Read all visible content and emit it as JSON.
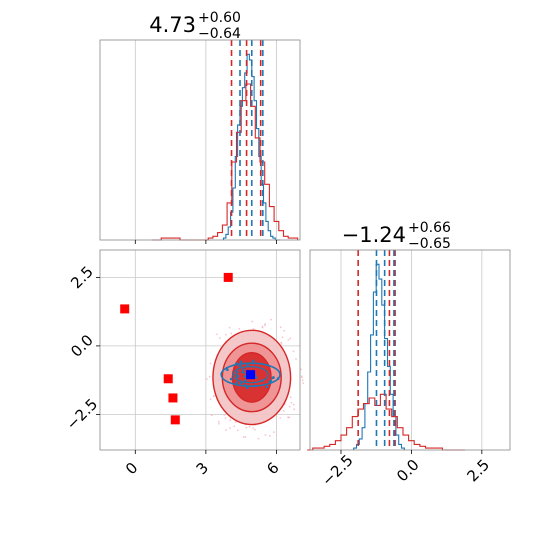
{
  "chart_data": [
    {
      "type": "histogram",
      "panel": "top-left",
      "title": {
        "value": "4.73",
        "upper": "+0.60",
        "lower": "−0.64"
      },
      "x_range": [
        -1.5,
        7.0
      ],
      "x_grid": [
        0,
        3,
        6
      ],
      "series": [
        {
          "color": "#1f77b4",
          "bins_x": [
            3.8,
            3.9,
            4.0,
            4.1,
            4.2,
            4.3,
            4.4,
            4.5,
            4.6,
            4.7,
            4.8,
            4.9,
            5.0,
            5.1,
            5.2,
            5.3,
            5.4,
            5.5,
            5.6,
            5.7,
            5.8,
            5.9,
            6.0,
            6.1
          ],
          "heights": [
            0.01,
            0.03,
            0.07,
            0.15,
            0.28,
            0.45,
            0.62,
            0.72,
            0.82,
            0.9,
            1.0,
            0.97,
            0.88,
            0.75,
            0.6,
            0.45,
            0.3,
            0.2,
            0.1,
            0.05,
            0.02,
            0.01,
            0.0,
            0.0
          ]
        },
        {
          "color": "#d62728",
          "bins_x": [
            0.8,
            1.0,
            1.2,
            1.4,
            1.6,
            1.8,
            2.0,
            2.2,
            2.4,
            2.6,
            2.8,
            3.0,
            3.2,
            3.4,
            3.6,
            3.8,
            4.0,
            4.2,
            4.4,
            4.6,
            4.8,
            5.0,
            5.2,
            5.4,
            5.6,
            5.8,
            6.0,
            6.2,
            6.4,
            6.6,
            6.8
          ],
          "heights": [
            0.0,
            0.0,
            0.01,
            0.01,
            0.01,
            0.01,
            0.0,
            0.0,
            0.0,
            0.0,
            0.0,
            0.0,
            0.01,
            0.02,
            0.04,
            0.08,
            0.2,
            0.42,
            0.58,
            0.75,
            0.84,
            0.72,
            0.55,
            0.42,
            0.3,
            0.18,
            0.1,
            0.05,
            0.02,
            0.01,
            0.01
          ]
        }
      ],
      "vlines": [
        {
          "x": 4.09,
          "color": "#d62728"
        },
        {
          "x": 4.73,
          "color": "#d62728"
        },
        {
          "x": 5.33,
          "color": "#d62728"
        },
        {
          "x": 4.45,
          "color": "#1f77b4"
        },
        {
          "x": 4.95,
          "color": "#1f77b4"
        },
        {
          "x": 5.42,
          "color": "#1f77b4"
        }
      ]
    },
    {
      "type": "histogram",
      "panel": "bottom-right",
      "title": {
        "value": "−1.24",
        "upper": "+0.66",
        "lower": "−0.65"
      },
      "x_range": [
        -3.6,
        3.5
      ],
      "x_grid": [
        -2.5,
        0.0,
        2.5
      ],
      "x_ticks": [
        "−2.5",
        "0.0",
        "2.5"
      ],
      "series": [
        {
          "color": "#1f77b4",
          "bins_x": [
            -2.0,
            -1.9,
            -1.8,
            -1.7,
            -1.6,
            -1.5,
            -1.4,
            -1.3,
            -1.2,
            -1.1,
            -1.0,
            -0.9,
            -0.8,
            -0.7,
            -0.6,
            -0.5,
            -0.4,
            -0.3
          ],
          "heights": [
            0.01,
            0.03,
            0.06,
            0.12,
            0.25,
            0.42,
            0.62,
            0.85,
            1.0,
            0.92,
            0.78,
            0.6,
            0.45,
            0.3,
            0.18,
            0.08,
            0.03,
            0.01
          ]
        },
        {
          "color": "#d62728",
          "bins_x": [
            -3.6,
            -3.4,
            -3.2,
            -3.0,
            -2.8,
            -2.6,
            -2.4,
            -2.2,
            -2.0,
            -1.8,
            -1.6,
            -1.4,
            -1.2,
            -1.0,
            -0.8,
            -0.6,
            -0.4,
            -0.2,
            0.0,
            0.2,
            0.4,
            0.6,
            0.8,
            1.0,
            1.2,
            1.4,
            1.6,
            1.8
          ],
          "heights": [
            0.0,
            0.01,
            0.01,
            0.02,
            0.03,
            0.05,
            0.08,
            0.12,
            0.18,
            0.22,
            0.25,
            0.28,
            0.24,
            0.3,
            0.22,
            0.18,
            0.12,
            0.08,
            0.05,
            0.03,
            0.02,
            0.01,
            0.01,
            0.01,
            0.0,
            0.0,
            0.0,
            0.0
          ]
        }
      ],
      "vlines": [
        {
          "x": -1.89,
          "color": "#d62728"
        },
        {
          "x": -1.24,
          "color": "#1f77b4"
        },
        {
          "x": -0.78,
          "color": "#d62728"
        },
        {
          "x": -0.58,
          "color": "#d62728"
        },
        {
          "x": -0.95,
          "color": "#1f77b4"
        },
        {
          "x": -0.62,
          "color": "#1f77b4"
        }
      ]
    },
    {
      "type": "scatter",
      "panel": "bottom-left",
      "x_range": [
        -1.5,
        7.0
      ],
      "y_range": [
        -3.8,
        3.5
      ],
      "x_ticks": [
        "0",
        "3",
        "6"
      ],
      "y_ticks": [
        "2.5",
        "0.0",
        "−2.5"
      ],
      "x_tick_values": [
        0,
        3,
        6
      ],
      "y_tick_values": [
        2.5,
        0.0,
        -2.5
      ],
      "contour_center": [
        4.95,
        -1.15
      ],
      "contour_levels": [
        {
          "rx": 1.65,
          "ry": 1.72,
          "color": "#f3c2c2"
        },
        {
          "rx": 1.25,
          "ry": 1.25,
          "color": "#ee8f8f"
        },
        {
          "rx": 0.82,
          "ry": 0.9,
          "color": "#d62728"
        }
      ],
      "blue_contour": {
        "center": [
          4.9,
          -1.05
        ],
        "rx": 1.25,
        "ry": 0.42,
        "color": "#1f77b4"
      },
      "red_squares": [
        {
          "x": -0.45,
          "y": 1.35
        },
        {
          "x": 3.95,
          "y": 2.5
        },
        {
          "x": 1.4,
          "y": -1.2
        },
        {
          "x": 1.6,
          "y": -1.9
        },
        {
          "x": 1.7,
          "y": -2.7
        }
      ],
      "blue_square": {
        "x": 4.9,
        "y": -1.05
      }
    }
  ]
}
